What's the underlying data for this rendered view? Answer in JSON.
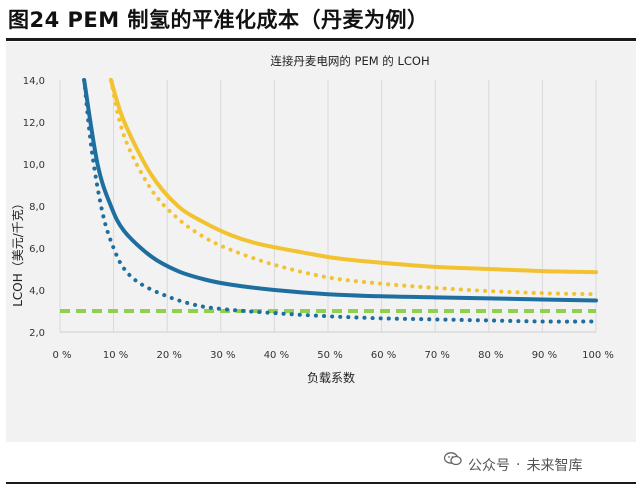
{
  "figure_title": "图24 PEM 制氢的平准化成本（丹麦为例）",
  "watermark": {
    "channel_label": "公众号",
    "separator": "·",
    "account_name": "未来智库",
    "icon": "wechat-icon"
  },
  "colors": {
    "blue": "#1e6f9f",
    "yellow": "#f2c230",
    "green": "#8fd14f",
    "grid": "#d9d9d9",
    "background": "#f2f2f2"
  },
  "chart_data": {
    "type": "line",
    "title": "连接丹麦电网的 PEM 的 LCOH",
    "xlabel": "负载系数",
    "ylabel": "LCOH（美元/千克）",
    "xlim": [
      0,
      100
    ],
    "ylim": [
      2.0,
      14.0
    ],
    "x_ticks": [
      "0 %",
      "10 %",
      "20 %",
      "30 %",
      "40 %",
      "50 %",
      "60 %",
      "70 %",
      "80 %",
      "90 %",
      "100 %"
    ],
    "y_ticks": [
      "2,0",
      "4,0",
      "6,0",
      "8,0",
      "10,0",
      "12,0",
      "14,0"
    ],
    "grid": "vertical",
    "series": [
      {
        "style": "solid",
        "color": "yellow",
        "x": [
          9.5,
          12,
          17,
          22,
          27,
          32,
          37,
          45,
          52,
          60,
          70,
          80,
          90,
          100
        ],
        "y": [
          14.0,
          12.0,
          9.5,
          8.0,
          7.2,
          6.6,
          6.2,
          5.8,
          5.5,
          5.3,
          5.1,
          5.0,
          4.9,
          4.85
        ]
      },
      {
        "style": "dotted",
        "color": "yellow",
        "x": [
          9.5,
          12,
          17,
          22,
          27,
          32,
          40,
          50,
          60,
          70,
          80,
          90,
          100
        ],
        "y": [
          14.0,
          11.3,
          8.8,
          7.4,
          6.5,
          5.9,
          5.2,
          4.6,
          4.3,
          4.1,
          3.95,
          3.85,
          3.8
        ]
      },
      {
        "style": "solid",
        "color": "blue",
        "x": [
          4.5,
          7,
          9.5,
          12,
          17,
          22,
          27,
          32,
          40,
          50,
          60,
          70,
          80,
          90,
          100
        ],
        "y": [
          14.0,
          10.0,
          8.0,
          6.8,
          5.6,
          4.9,
          4.5,
          4.25,
          4.0,
          3.8,
          3.7,
          3.65,
          3.6,
          3.55,
          3.5
        ]
      },
      {
        "style": "dotted",
        "color": "blue",
        "x": [
          4.5,
          6,
          8,
          10,
          12,
          15,
          20,
          25,
          30,
          40,
          50,
          60,
          70,
          80,
          90,
          100
        ],
        "y": [
          14.0,
          10.5,
          7.6,
          6.0,
          5.0,
          4.3,
          3.7,
          3.3,
          3.1,
          2.9,
          2.75,
          2.65,
          2.6,
          2.55,
          2.5,
          2.5
        ]
      },
      {
        "style": "dashed",
        "color": "green",
        "x": [
          0,
          100
        ],
        "y": [
          3.0,
          3.0
        ]
      }
    ]
  }
}
